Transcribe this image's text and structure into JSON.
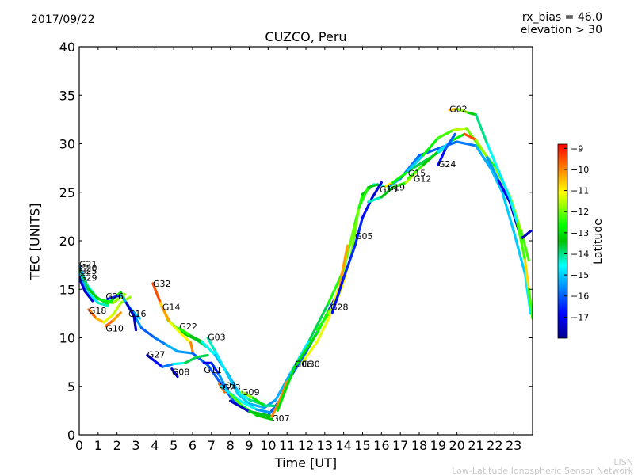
{
  "chart_data": {
    "type": "line",
    "title": "CUZCO, Peru",
    "date": "2017/09/22",
    "annotations": [
      "rx_bias = 46.0",
      "elevation > 30"
    ],
    "xlabel": "Time [UT]",
    "ylabel": "TEC [UNITS]",
    "xlim": [
      0,
      24
    ],
    "ylim": [
      0,
      40
    ],
    "xticks": [
      "0",
      "1",
      "2",
      "3",
      "4",
      "5",
      "6",
      "7",
      "8",
      "9",
      "10",
      "11",
      "12",
      "13",
      "14",
      "15",
      "16",
      "17",
      "18",
      "19",
      "20",
      "21",
      "22",
      "23"
    ],
    "yticks": [
      "0",
      "5",
      "10",
      "15",
      "20",
      "25",
      "30",
      "35",
      "40"
    ],
    "grid": false,
    "colorbar": {
      "label": "Latitude",
      "range": [
        -18,
        -8.8
      ],
      "ticks": [
        "−9",
        "−10",
        "−11",
        "−12",
        "−13",
        "−14",
        "−15",
        "−16",
        "−17"
      ],
      "colormap": "jet"
    },
    "series": [
      {
        "name": "G21",
        "label_at": [
          0.0,
          17.6
        ],
        "points": [
          [
            0,
            17.4,
            -16
          ],
          [
            0.4,
            15.5,
            -15
          ],
          [
            0.9,
            14.2,
            -14
          ],
          [
            1.5,
            13.5,
            -13.5
          ],
          [
            2.2,
            14.7,
            -12
          ],
          [
            2.6,
            13.2,
            -15
          ],
          [
            3.2,
            12.0,
            -15.5
          ]
        ]
      },
      {
        "name": "G20",
        "label_at": [
          0.0,
          17.2
        ],
        "points": [
          [
            0,
            17.0,
            -14
          ],
          [
            0.5,
            15.0,
            -13.5
          ],
          [
            1.0,
            14.0,
            -13
          ],
          [
            1.8,
            13.6,
            -12.5
          ],
          [
            2.4,
            14.5,
            -11
          ]
        ]
      },
      {
        "name": "G25",
        "label_at": [
          0.0,
          16.9
        ],
        "points": [
          [
            0,
            16.6,
            -15.5
          ],
          [
            0.4,
            14.8,
            -15
          ],
          [
            1.0,
            13.6,
            -14.5
          ],
          [
            1.5,
            13.3,
            -14
          ]
        ]
      },
      {
        "name": "G29",
        "label_at": [
          0.0,
          16.2
        ],
        "points": [
          [
            0,
            16.2,
            -17.5
          ],
          [
            0.3,
            14.8,
            -17
          ],
          [
            0.7,
            13.8,
            -17.5
          ]
        ]
      },
      {
        "name": "G18",
        "label_at": [
          0.5,
          12.8
        ],
        "points": [
          [
            0.5,
            12.9,
            -9.5
          ],
          [
            0.9,
            12.0,
            -10
          ],
          [
            1.3,
            11.6,
            -11
          ],
          [
            1.8,
            12.4,
            -11.5
          ],
          [
            2.2,
            13.6,
            -11.5
          ],
          [
            2.7,
            14.2,
            -12
          ]
        ]
      },
      {
        "name": "G10",
        "label_at": [
          1.4,
          11.0
        ],
        "points": [
          [
            1.4,
            11.2,
            -9.5
          ],
          [
            1.8,
            11.8,
            -10
          ],
          [
            2.2,
            12.6,
            -10.5
          ]
        ]
      },
      {
        "name": "G26",
        "label_at": [
          1.4,
          14.3
        ],
        "points": [
          [
            1.5,
            14.0,
            -17.5
          ],
          [
            2.2,
            14.4,
            -15.5
          ],
          [
            2.7,
            13.0,
            -15
          ],
          [
            3.3,
            11.0,
            -16
          ],
          [
            4.0,
            10.0,
            -16
          ],
          [
            4.6,
            9.3,
            -15.5
          ],
          [
            5.2,
            8.6,
            -15
          ],
          [
            6.0,
            8.4,
            -16
          ],
          [
            6.8,
            7.2,
            -16
          ],
          [
            7.6,
            5.0,
            -16
          ],
          [
            8.2,
            3.4,
            -16
          ],
          [
            9.0,
            2.4,
            -16
          ],
          [
            10.0,
            2.0,
            -16
          ],
          [
            10.6,
            3.5,
            -16
          ],
          [
            11.2,
            6.0,
            -16
          ],
          [
            12.0,
            8.5,
            -16
          ],
          [
            13.0,
            12.0,
            -16
          ],
          [
            13.6,
            14.3,
            -17
          ]
        ]
      },
      {
        "name": "G16",
        "label_at": [
          2.6,
          12.5
        ],
        "points": [
          [
            2.5,
            13.6,
            -17
          ],
          [
            2.9,
            12.2,
            -17.5
          ],
          [
            3.0,
            10.8,
            -17.5
          ]
        ]
      },
      {
        "name": "G32",
        "label_at": [
          3.9,
          15.6
        ],
        "points": [
          [
            3.9,
            15.6,
            -9
          ],
          [
            4.3,
            13.6,
            -10
          ],
          [
            4.7,
            11.8,
            -11.5
          ],
          [
            5.4,
            10.6,
            -13
          ],
          [
            6.2,
            9.8,
            -13.5
          ],
          [
            6.8,
            9.0,
            -14
          ]
        ]
      },
      {
        "name": "G14",
        "label_at": [
          4.4,
          13.2
        ],
        "points": [
          [
            4.4,
            13.1,
            -9.5
          ],
          [
            4.8,
            11.6,
            -11
          ],
          [
            5.4,
            10.4,
            -11.5
          ],
          [
            5.9,
            9.5,
            -10.5
          ],
          [
            6.0,
            8.6,
            -9.5
          ]
        ]
      },
      {
        "name": "G22",
        "label_at": [
          5.3,
          11.2
        ],
        "points": [
          [
            5.3,
            11.0,
            -12
          ],
          [
            5.9,
            10.2,
            -13
          ],
          [
            6.5,
            9.6,
            -14
          ],
          [
            7.2,
            8.2,
            -15
          ],
          [
            7.9,
            6.2,
            -15.5
          ],
          [
            8.4,
            4.5,
            -15
          ],
          [
            9.0,
            3.6,
            -14
          ],
          [
            9.8,
            3.1,
            -14
          ]
        ]
      },
      {
        "name": "G03",
        "label_at": [
          6.8,
          10.1
        ],
        "points": [
          [
            6.8,
            10.0,
            -14
          ],
          [
            7.2,
            8.6,
            -14.5
          ],
          [
            7.8,
            6.4,
            -15
          ],
          [
            8.4,
            4.2,
            -15
          ],
          [
            9.0,
            3.2,
            -15
          ],
          [
            9.8,
            2.8,
            -15.5
          ],
          [
            10.4,
            3.6,
            -15.5
          ],
          [
            11.2,
            6.4,
            -15
          ],
          [
            12.2,
            9.8,
            -14.5
          ],
          [
            13.2,
            13.6,
            -13
          ],
          [
            14.0,
            17.0,
            -12
          ],
          [
            14.6,
            21.8,
            -12
          ],
          [
            15.0,
            24.8,
            -13
          ],
          [
            15.6,
            25.8,
            -14
          ],
          [
            16.4,
            25.6,
            -15
          ],
          [
            17.0,
            26.4,
            -15.5
          ],
          [
            18.0,
            28.8,
            -16
          ],
          [
            19.0,
            29.5,
            -16
          ],
          [
            20.0,
            30.2,
            -16
          ],
          [
            21.0,
            29.8,
            -15.5
          ],
          [
            21.8,
            27.4,
            -15
          ],
          [
            22.4,
            25.0,
            -15
          ],
          [
            23.0,
            21.0,
            -15
          ],
          [
            23.6,
            16.6,
            -15
          ],
          [
            23.9,
            12.5,
            -14.5
          ]
        ]
      },
      {
        "name": "G27",
        "label_at": [
          3.6,
          8.3
        ],
        "points": [
          [
            3.6,
            8.2,
            -17.5
          ],
          [
            4.0,
            7.6,
            -17
          ],
          [
            4.4,
            7.0,
            -16.5
          ],
          [
            5.0,
            7.3,
            -15
          ],
          [
            5.6,
            7.4,
            -14
          ],
          [
            6.2,
            8.0,
            -13.5
          ],
          [
            6.8,
            8.2,
            -14
          ]
        ]
      },
      {
        "name": "G08",
        "label_at": [
          4.9,
          6.5
        ],
        "points": [
          [
            4.9,
            6.8,
            -17.5
          ],
          [
            5.2,
            6.0,
            -17.5
          ]
        ]
      },
      {
        "name": "G11",
        "label_at": [
          6.6,
          6.7
        ],
        "points": [
          [
            6.6,
            7.4,
            -17
          ],
          [
            7.0,
            7.4,
            -17
          ],
          [
            7.4,
            6.2,
            -16
          ],
          [
            7.9,
            4.4,
            -15
          ],
          [
            8.6,
            3.4,
            -14
          ],
          [
            9.4,
            2.6,
            -15
          ],
          [
            10.1,
            2.3,
            -16
          ]
        ]
      },
      {
        "name": "G01",
        "label_at": [
          7.4,
          5.1
        ],
        "points": [
          [
            7.4,
            5.3,
            -9.5
          ],
          [
            7.7,
            4.4,
            -10
          ]
        ]
      },
      {
        "name": "G23",
        "label_at": [
          7.6,
          4.9
        ],
        "points": [
          [
            7.5,
            5.0,
            -17.5
          ],
          [
            8.0,
            4.2,
            -12
          ],
          [
            8.6,
            3.0,
            -12.5
          ],
          [
            9.4,
            2.0,
            -13
          ],
          [
            10.2,
            1.6,
            -13.5
          ]
        ]
      },
      {
        "name": "G09",
        "label_at": [
          8.6,
          4.4
        ],
        "points": [
          [
            8.6,
            4.4,
            -11
          ],
          [
            9.2,
            3.8,
            -12.5
          ],
          [
            9.8,
            3.0,
            -13.5
          ],
          [
            10.3,
            3.0,
            -14.5
          ]
        ]
      },
      {
        "name": "G07",
        "label_at": [
          10.2,
          1.7
        ],
        "points": [
          [
            8.0,
            3.5,
            -17.5
          ],
          [
            9.0,
            2.4,
            -17.5
          ],
          [
            10.2,
            1.9,
            -9.5
          ],
          [
            10.6,
            3.5,
            -10.5
          ],
          [
            11.0,
            5.5,
            -9.5
          ]
        ]
      },
      {
        "name": "G06",
        "label_at": [
          11.4,
          7.3
        ],
        "points": [
          [
            10.5,
            2.5,
            -13
          ],
          [
            11.4,
            7.0,
            -13
          ],
          [
            12.6,
            10.5,
            -13
          ],
          [
            13.2,
            12.8,
            -12.5
          ]
        ]
      },
      {
        "name": "G30",
        "label_at": [
          11.8,
          7.3
        ],
        "points": [
          [
            11.8,
            7.4,
            -11
          ],
          [
            12.6,
            9.6,
            -11.5
          ],
          [
            13.2,
            12.0,
            -11
          ],
          [
            13.8,
            15.5,
            -11
          ],
          [
            14.2,
            19.5,
            -9.5
          ]
        ]
      },
      {
        "name": "G28",
        "label_at": [
          13.3,
          13.2
        ],
        "points": [
          [
            12.6,
            10.8,
            -12
          ],
          [
            13.2,
            12.5,
            -13
          ],
          [
            13.8,
            14.6,
            -10
          ],
          [
            14.4,
            18.5,
            -12
          ],
          [
            14.8,
            23.4,
            -12
          ],
          [
            15.3,
            25.5,
            -13
          ],
          [
            15.8,
            25.8,
            -14
          ]
        ]
      },
      {
        "name": "G05",
        "label_at": [
          14.6,
          20.5
        ],
        "points": [
          [
            13.4,
            12.6,
            -17
          ],
          [
            14.0,
            16.2,
            -16.5
          ],
          [
            14.6,
            19.5,
            -16.5
          ],
          [
            15.0,
            22.4,
            -16.5
          ],
          [
            15.5,
            24.4,
            -17
          ],
          [
            16.0,
            26.0,
            -17.5
          ]
        ]
      },
      {
        "name": "G13",
        "label_at": [
          15.9,
          25.3
        ],
        "points": [
          [
            15.3,
            24.0,
            -14.5
          ],
          [
            16.0,
            24.5,
            -14
          ],
          [
            16.6,
            25.5,
            -13
          ],
          [
            17.3,
            26.0,
            -12
          ],
          [
            17.8,
            27.0,
            -11
          ]
        ]
      },
      {
        "name": "G19",
        "label_at": [
          16.3,
          25.5
        ],
        "points": [
          [
            16.2,
            25.6,
            -10
          ],
          [
            16.6,
            26.0,
            -12
          ],
          [
            17.6,
            27.4,
            -13.5
          ],
          [
            18.6,
            28.6,
            -14
          ],
          [
            19.4,
            29.6,
            -14.5
          ]
        ]
      },
      {
        "name": "G15",
        "label_at": [
          17.4,
          27.0
        ],
        "points": [
          [
            17.4,
            27.2,
            -17
          ],
          [
            18.2,
            28.8,
            -13
          ],
          [
            19.0,
            30.6,
            -12.5
          ],
          [
            19.8,
            31.4,
            -12
          ],
          [
            20.5,
            31.6,
            -11
          ],
          [
            21.0,
            30.2,
            -13
          ],
          [
            22.0,
            27.6,
            -12
          ],
          [
            22.8,
            24.6,
            -11.5
          ],
          [
            23.4,
            21.0,
            -12
          ],
          [
            23.8,
            18.0,
            -12.5
          ]
        ]
      },
      {
        "name": "G12",
        "label_at": [
          17.7,
          26.4
        ],
        "points": [
          [
            17.4,
            26.4,
            -11.5
          ],
          [
            18.2,
            27.8,
            -13
          ],
          [
            19.0,
            29.2,
            -13.5
          ],
          [
            19.8,
            30.4,
            -16
          ],
          [
            20.4,
            31.0,
            -9.5
          ],
          [
            21.0,
            30.4,
            -9.5
          ],
          [
            21.6,
            28.6,
            -14
          ],
          [
            22.2,
            26.2,
            -17
          ],
          [
            22.8,
            24.0,
            -17
          ],
          [
            23.4,
            20.2,
            -17.5
          ],
          [
            23.9,
            21.0,
            -17.5
          ]
        ]
      },
      {
        "name": "G24",
        "label_at": [
          19.0,
          27.9
        ],
        "points": [
          [
            19.0,
            27.8,
            -17.5
          ],
          [
            19.4,
            29.5,
            -16
          ],
          [
            19.9,
            31.0,
            -16
          ]
        ]
      },
      {
        "name": "G02",
        "label_at": [
          19.6,
          33.6
        ],
        "points": [
          [
            19.6,
            33.5,
            -10
          ],
          [
            20.0,
            33.6,
            -11
          ],
          [
            20.6,
            33.2,
            -12.5
          ],
          [
            21.0,
            33.0,
            -14
          ],
          [
            21.6,
            30.0,
            -14
          ],
          [
            22.2,
            27.2,
            -15
          ],
          [
            22.8,
            24.4,
            -14.5
          ],
          [
            23.2,
            21.8,
            -14.5
          ],
          [
            23.6,
            18.0,
            -10
          ],
          [
            23.8,
            15.0,
            -11.5
          ],
          [
            24.0,
            12.0,
            -13
          ]
        ]
      }
    ]
  },
  "watermark": {
    "short": "LISN",
    "full": "Low-Latitude Ionospheric Sensor Network"
  }
}
